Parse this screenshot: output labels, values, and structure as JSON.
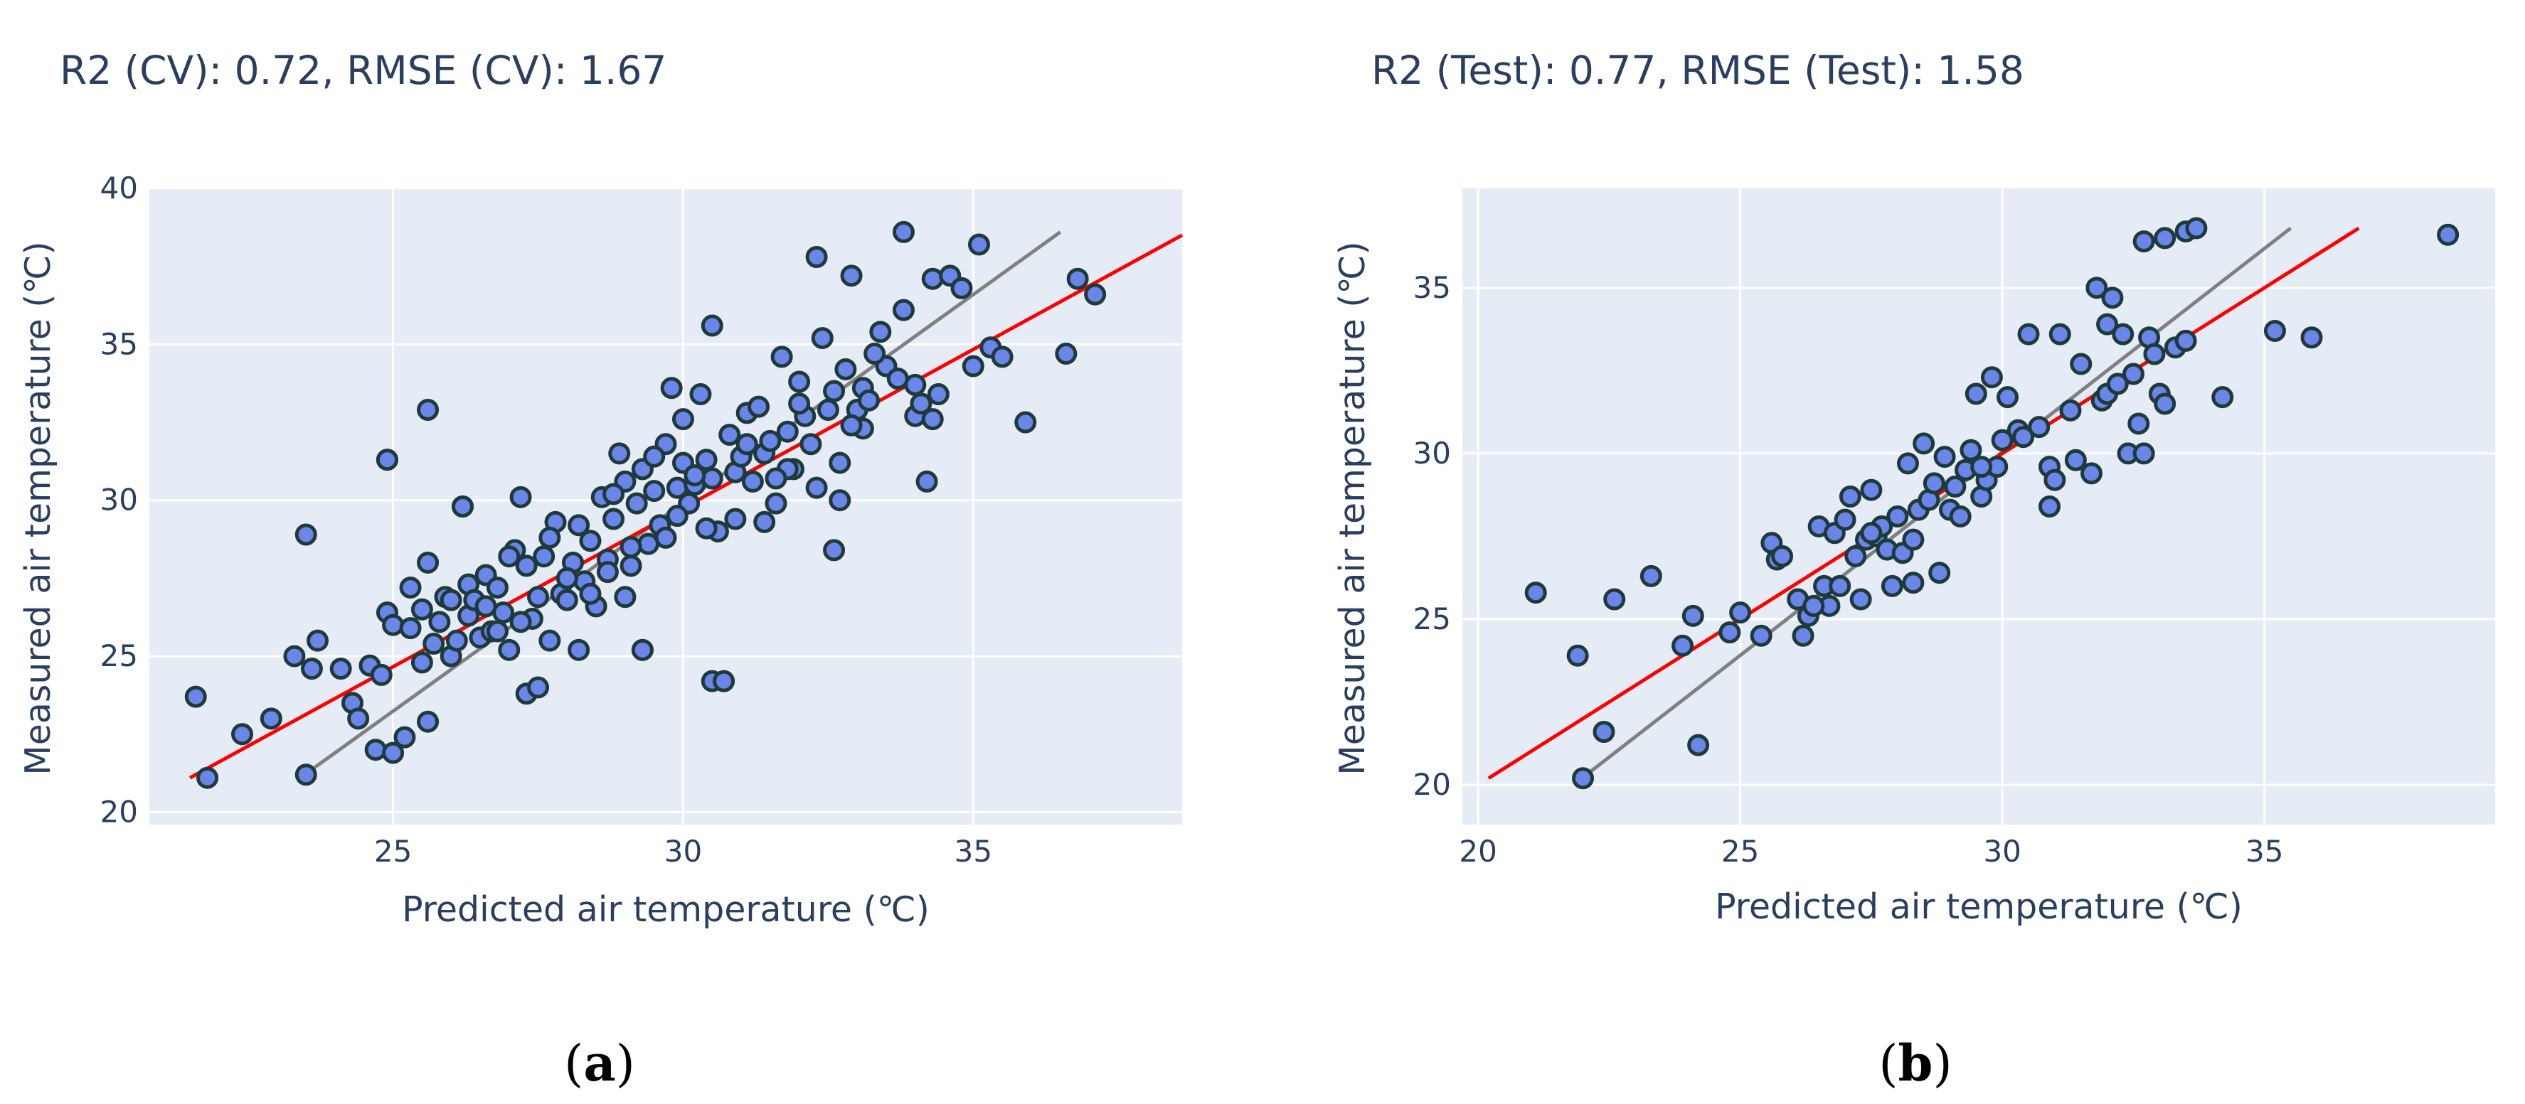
{
  "chart_data": [
    {
      "type": "scatter",
      "panel_label": "a",
      "title": "R2 (CV): 0.72,  RMSE (CV): 1.67",
      "xlabel": "Predicted air temperature (℃)",
      "ylabel": "Measured air temperature (℃)",
      "xlim": [
        20.8,
        38.6
      ],
      "ylim": [
        19.6,
        40.0
      ],
      "xticks": [
        25,
        30,
        35
      ],
      "yticks": [
        20,
        25,
        30,
        35,
        40
      ],
      "grid": true,
      "colors": {
        "marker": "#6a86e8",
        "marker_edge": "#1f3a3a",
        "fit_line": "#ff0000",
        "identity_line": "#808080",
        "background": "#e5ecf6"
      },
      "lines": {
        "fit": {
          "x": [
            21.5,
            38.6
          ],
          "y": [
            21.1,
            38.5
          ]
        },
        "reference": {
          "x": [
            23.4,
            36.5
          ],
          "y": [
            21.1,
            38.6
          ]
        }
      },
      "x": [
        21.6,
        21.8,
        22.4,
        22.9,
        23.3,
        23.5,
        23.5,
        23.6,
        23.7,
        24.1,
        24.3,
        24.4,
        24.6,
        24.7,
        24.8,
        24.9,
        24.9,
        25.0,
        25.0,
        25.2,
        25.3,
        25.5,
        25.5,
        25.6,
        25.6,
        25.7,
        25.8,
        25.9,
        26.0,
        26.1,
        26.2,
        26.3,
        26.3,
        26.4,
        26.5,
        26.6,
        26.7,
        26.8,
        26.9,
        27.0,
        27.1,
        27.2,
        27.3,
        27.3,
        27.4,
        27.5,
        27.6,
        27.7,
        27.8,
        27.9,
        28.0,
        28.1,
        28.2,
        28.2,
        28.3,
        28.4,
        28.5,
        28.6,
        28.7,
        28.8,
        28.9,
        29.0,
        29.0,
        29.1,
        29.2,
        29.3,
        29.3,
        29.4,
        29.5,
        29.6,
        29.7,
        29.8,
        29.9,
        30.0,
        30.0,
        30.1,
        30.2,
        30.3,
        30.4,
        30.5,
        30.5,
        30.6,
        30.7,
        30.8,
        30.9,
        31.0,
        31.1,
        31.2,
        31.3,
        31.4,
        31.5,
        31.6,
        31.7,
        31.8,
        31.9,
        32.0,
        32.1,
        32.2,
        32.3,
        32.4,
        32.5,
        32.6,
        32.7,
        32.8,
        32.9,
        33.0,
        33.1,
        33.2,
        33.4,
        33.5,
        33.7,
        33.8,
        34.0,
        34.1,
        34.3,
        34.4,
        34.6,
        34.8,
        35.0,
        35.1,
        35.3,
        35.5,
        35.9,
        36.6,
        36.8,
        37.1,
        25.6,
        24.9,
        30.5,
        30.7,
        29.3,
        26.2,
        27.2,
        28.4,
        29.7,
        30.9,
        31.8,
        32.3,
        32.7,
        33.1,
        34.0,
        34.3,
        33.8,
        32.9,
        31.6,
        30.4,
        29.1,
        28.0,
        27.5,
        26.8,
        25.3,
        26.0,
        27.0,
        28.7,
        29.9,
        31.1,
        32.0,
        33.3,
        34.2,
        30.2,
        29.5,
        28.8,
        31.4,
        32.6,
        27.7,
        26.6
      ],
      "y": [
        23.7,
        21.1,
        22.5,
        23.0,
        25.0,
        28.9,
        21.2,
        24.6,
        25.5,
        24.6,
        23.5,
        23.0,
        24.7,
        22.0,
        24.4,
        31.3,
        26.4,
        26.0,
        21.9,
        22.4,
        27.2,
        24.8,
        26.5,
        28.0,
        22.9,
        25.4,
        26.1,
        26.9,
        25.0,
        25.5,
        29.8,
        27.3,
        26.3,
        26.8,
        25.6,
        27.6,
        25.8,
        27.2,
        26.4,
        25.2,
        28.4,
        30.1,
        23.8,
        27.9,
        26.2,
        24.0,
        28.2,
        25.5,
        29.3,
        27.0,
        26.8,
        28.0,
        25.2,
        29.2,
        27.4,
        28.7,
        26.6,
        30.1,
        28.1,
        29.4,
        31.5,
        26.9,
        30.6,
        27.9,
        29.9,
        25.2,
        31.0,
        28.6,
        30.3,
        29.2,
        31.8,
        33.6,
        30.4,
        31.2,
        32.6,
        29.9,
        30.5,
        33.4,
        31.3,
        30.7,
        35.6,
        29.0,
        24.2,
        32.1,
        30.9,
        31.4,
        32.8,
        30.6,
        33.0,
        31.5,
        31.9,
        29.9,
        34.6,
        32.2,
        31.0,
        33.8,
        32.7,
        31.8,
        37.8,
        35.2,
        32.9,
        33.5,
        31.2,
        34.2,
        37.2,
        32.9,
        33.6,
        33.2,
        35.4,
        34.3,
        33.9,
        36.1,
        32.7,
        33.1,
        37.1,
        33.4,
        37.2,
        36.8,
        34.3,
        38.2,
        34.9,
        34.6,
        32.5,
        34.7,
        37.1,
        36.6,
        32.9,
        31.3,
        24.2,
        24.2,
        25.2,
        29.8,
        26.1,
        27.0,
        28.8,
        29.4,
        31.0,
        30.4,
        30.0,
        32.3,
        33.7,
        32.6,
        38.6,
        32.4,
        30.7,
        29.1,
        28.5,
        27.5,
        26.9,
        25.8,
        25.9,
        26.8,
        28.2,
        27.7,
        29.5,
        31.8,
        33.1,
        34.7,
        30.6,
        30.8,
        31.4,
        30.2,
        29.3,
        28.4,
        28.8,
        26.6
      ]
    },
    {
      "type": "scatter",
      "panel_label": "b",
      "title": "R2 (Test): 0.77,  RMSE (Test): 1.58",
      "xlabel": "Predicted air temperature (℃)",
      "ylabel": "Measured air temperature (℃)",
      "xlim": [
        19.7,
        39.4
      ],
      "ylim": [
        18.8,
        38.0
      ],
      "xticks": [
        20,
        25,
        30,
        35
      ],
      "yticks": [
        20,
        25,
        30,
        35
      ],
      "grid": true,
      "colors": {
        "marker": "#6a86e8",
        "marker_edge": "#1f3a3a",
        "fit_line": "#ff0000",
        "identity_line": "#808080",
        "background": "#e5ecf6"
      },
      "lines": {
        "fit": {
          "x": [
            20.2,
            36.8
          ],
          "y": [
            20.2,
            36.8
          ]
        },
        "reference": {
          "x": [
            21.9,
            35.5
          ],
          "y": [
            20.1,
            36.8
          ]
        }
      },
      "x": [
        21.1,
        21.9,
        22.4,
        22.6,
        23.3,
        23.9,
        24.1,
        24.2,
        24.8,
        25.0,
        25.4,
        25.6,
        25.7,
        25.8,
        26.1,
        26.2,
        26.3,
        26.5,
        26.6,
        26.7,
        26.8,
        26.9,
        27.0,
        27.1,
        27.2,
        27.3,
        27.4,
        27.5,
        27.6,
        27.7,
        27.8,
        27.9,
        28.0,
        28.1,
        28.2,
        28.3,
        28.4,
        28.5,
        28.6,
        28.7,
        28.8,
        28.9,
        29.0,
        29.1,
        29.2,
        29.3,
        29.4,
        29.5,
        29.6,
        29.7,
        29.8,
        29.9,
        30.0,
        30.1,
        30.3,
        30.5,
        30.7,
        30.9,
        31.0,
        31.1,
        31.3,
        31.5,
        31.7,
        31.8,
        31.9,
        32.0,
        32.1,
        32.2,
        32.3,
        32.4,
        32.5,
        32.6,
        32.7,
        32.8,
        32.9,
        33.0,
        33.1,
        33.3,
        33.5,
        33.7,
        34.2,
        35.2,
        35.9,
        38.5,
        32.7,
        33.1,
        33.5,
        29.6,
        30.4,
        30.9,
        31.4,
        32.0,
        28.3,
        27.5,
        26.4,
        22.0
      ],
      "y": [
        25.8,
        23.9,
        21.6,
        25.6,
        26.3,
        24.2,
        25.1,
        21.2,
        24.6,
        25.2,
        24.5,
        27.3,
        26.8,
        26.9,
        25.6,
        24.5,
        25.1,
        27.8,
        26.0,
        25.4,
        27.6,
        26.0,
        28.0,
        28.7,
        26.9,
        25.6,
        27.4,
        28.9,
        27.5,
        27.8,
        27.1,
        26.0,
        28.1,
        27.0,
        29.7,
        26.1,
        28.3,
        30.3,
        28.6,
        29.1,
        26.4,
        29.9,
        28.3,
        29.0,
        28.1,
        29.5,
        30.1,
        31.8,
        28.7,
        29.2,
        32.3,
        29.6,
        30.4,
        31.7,
        30.7,
        33.6,
        30.8,
        29.6,
        29.2,
        33.6,
        31.3,
        32.7,
        29.4,
        35.0,
        31.6,
        31.8,
        34.7,
        32.1,
        33.6,
        30.0,
        32.4,
        30.9,
        36.4,
        33.5,
        33.0,
        31.8,
        36.5,
        33.2,
        36.7,
        36.8,
        31.7,
        33.7,
        33.5,
        36.6,
        30.0,
        31.5,
        33.4,
        29.6,
        30.5,
        28.4,
        29.8,
        33.9,
        27.4,
        27.6,
        25.4,
        20.2
      ]
    }
  ]
}
